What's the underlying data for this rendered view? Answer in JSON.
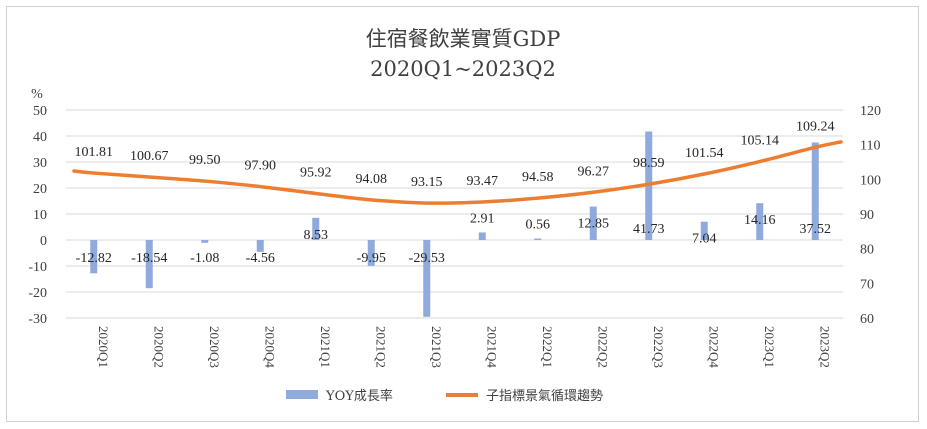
{
  "chart_data": {
    "type": "bar+line",
    "title_line1": "住宿餐飲業實質GDP",
    "title_line2": "2020Q1~2023Q2",
    "y_left_label": "%",
    "y_left_lim": [
      -30,
      50
    ],
    "y_left_ticks": [
      -30,
      -20,
      -10,
      0,
      10,
      20,
      30,
      40,
      50
    ],
    "y_right_lim": [
      60,
      120
    ],
    "y_right_ticks": [
      60,
      70,
      80,
      90,
      100,
      110,
      120
    ],
    "categories": [
      "2020Q1",
      "2020Q2",
      "2020Q3",
      "2020Q4",
      "2021Q1",
      "2021Q2",
      "2021Q3",
      "2021Q4",
      "2022Q1",
      "2022Q2",
      "2022Q3",
      "2022Q4",
      "2023Q1",
      "2023Q2"
    ],
    "series": [
      {
        "name": "YOY成長率",
        "kind": "bar",
        "axis": "left",
        "color": "#8faadc",
        "values": [
          -12.82,
          -18.54,
          -1.08,
          -4.56,
          8.53,
          -9.95,
          -29.53,
          2.91,
          0.56,
          12.85,
          41.73,
          7.04,
          14.16,
          37.52
        ],
        "labels": [
          "-12.82",
          "-18.54",
          "-1.08",
          "-4.56",
          "8.53",
          "-9.95",
          "-29.53",
          "2.91",
          "0.56",
          "12.85",
          "41.73",
          "7.04",
          "14.16",
          "37.52"
        ]
      },
      {
        "name": "子指標景氣循環趨勢",
        "kind": "line",
        "axis": "right",
        "color": "#ed7d31",
        "values": [
          101.81,
          100.67,
          99.5,
          97.9,
          95.92,
          94.08,
          93.15,
          93.47,
          94.58,
          96.27,
          98.59,
          101.54,
          105.14,
          109.24
        ],
        "labels": [
          "101.81",
          "100.67",
          "99.50",
          "97.90",
          "95.92",
          "94.08",
          "93.15",
          "93.47",
          "94.58",
          "96.27",
          "98.59",
          "101.54",
          "105.14",
          "109.24"
        ],
        "edge_values": [
          102.4,
          110.8
        ]
      }
    ],
    "legend_position": "bottom",
    "grid": true
  }
}
